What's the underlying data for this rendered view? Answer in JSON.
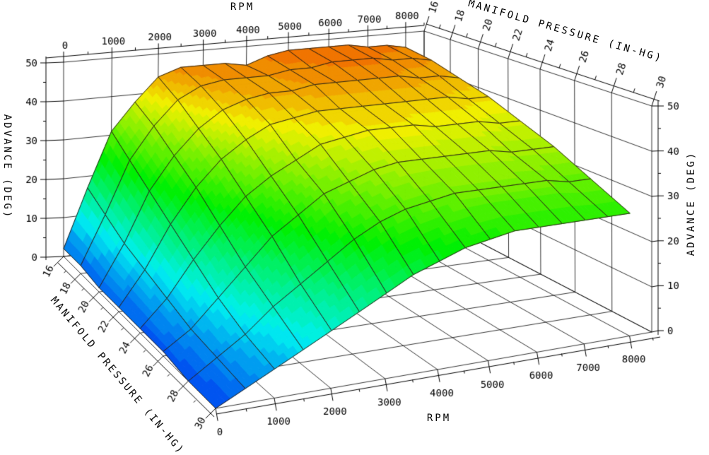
{
  "chart_data": {
    "type": "surface",
    "axes": {
      "rpm_top": {
        "label": "RPM",
        "ticks": [
          0,
          1000,
          2000,
          3000,
          4000,
          5000,
          6000,
          7000,
          8000
        ]
      },
      "map_top": {
        "label": "MANIFOLD PRESSURE (IN-HG)",
        "ticks": [
          16,
          18,
          20,
          22,
          24,
          26,
          28,
          30
        ]
      },
      "adv_left": {
        "label": "ADVANCE (DEG)",
        "ticks": [
          0,
          10,
          20,
          30,
          40,
          50
        ]
      },
      "adv_right": {
        "label": "ADVANCE (DEG)",
        "ticks": [
          0,
          10,
          20,
          30,
          40,
          50
        ]
      },
      "rpm_bottom": {
        "label": "RPM",
        "ticks": [
          0,
          1000,
          2000,
          3000,
          4000,
          5000,
          6000,
          7000,
          8000
        ]
      },
      "map_bottom": {
        "label": "MANIFOLD PRESSURE (IN-HG)",
        "ticks": [
          16,
          18,
          20,
          22,
          24,
          26,
          28,
          30
        ]
      }
    },
    "rpm_range": [
      0,
      8500
    ],
    "map_range": [
      16,
      30
    ],
    "adv_range": [
      0,
      50
    ],
    "rpm_minor_step": 500,
    "map_minor_step": 1,
    "adv_minor_step": 5,
    "grid": "on",
    "surface": {
      "rpm": [
        0,
        500,
        1000,
        1500,
        2000,
        2500,
        3000,
        3500,
        4000,
        4500,
        5000,
        5500,
        6000,
        6500,
        7000,
        7500,
        8000
      ],
      "map": [
        16,
        18,
        20,
        22,
        24,
        26,
        28,
        30
      ],
      "advance": [
        [
          2,
          17,
          31,
          38,
          44,
          46,
          46,
          46,
          45,
          47,
          48,
          48,
          48,
          48,
          47,
          47,
          46
        ],
        [
          2,
          14,
          27,
          35,
          41,
          44,
          45,
          45,
          45,
          46,
          46,
          47,
          47,
          47,
          46,
          46,
          45
        ],
        [
          1,
          11,
          23,
          31,
          37,
          41,
          43,
          44,
          44,
          45,
          45,
          45,
          45,
          45,
          44,
          44,
          43
        ],
        [
          1,
          9,
          19,
          27,
          33,
          37,
          40,
          41,
          42,
          42,
          42,
          42,
          42,
          42,
          42,
          41,
          41
        ],
        [
          1,
          7,
          15,
          22,
          28,
          32,
          35,
          38,
          39,
          40,
          40,
          40,
          39,
          39,
          39,
          38,
          38
        ],
        [
          1,
          5,
          11,
          17,
          23,
          27,
          31,
          33,
          35,
          36,
          36,
          36,
          36,
          36,
          35,
          35,
          35
        ],
        [
          0,
          4,
          8,
          13,
          17,
          21,
          25,
          28,
          30,
          31,
          32,
          32,
          32,
          32,
          32,
          31,
          31
        ],
        [
          0,
          3,
          6,
          9,
          12,
          15,
          18,
          21,
          23,
          25,
          26,
          27,
          27,
          27,
          27,
          27,
          27
        ]
      ]
    },
    "palette": {
      "type": "hsl-rainbow-banded",
      "hue_start": 222,
      "hue_end": 26,
      "saturation": 100,
      "lightness": 47,
      "band_step": 1.5,
      "z_max": 48,
      "low_color": "#0040d0",
      "high_color": "#f06000"
    },
    "colors": {
      "background": "#ffffff",
      "grid": "#000000",
      "mesh": "#2a2016",
      "axis": "#000000",
      "text": "#000000"
    }
  }
}
